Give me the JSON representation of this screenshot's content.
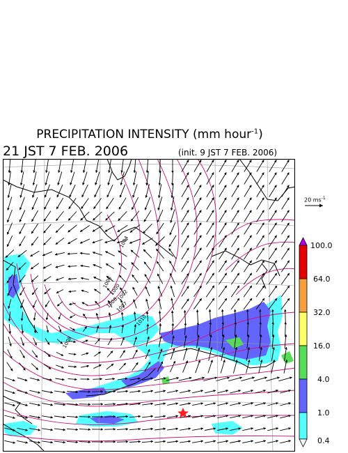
{
  "header": {
    "title_main": "PRECIPITATION INTENSITY (mm hour",
    "title_exp": "-1",
    "title_close": ")",
    "datetime": "21 JST 7 FEB. 2006",
    "init": "(init. 9 JST 7 FEB. 2006)"
  },
  "wind_scale": {
    "value": "20 ms",
    "exp": "-1"
  },
  "legend": {
    "levels": [
      "100.0",
      "64.0",
      "32.0",
      "16.0",
      "4.0",
      "1.0",
      "0.4"
    ],
    "colors": {
      "over": "#b400e6",
      "c64_100": "#e60000",
      "c32_64": "#f5a03c",
      "c16_32": "#ffff66",
      "c4_16": "#55dd55",
      "c1_4": "#6464ff",
      "c04_1": "#55ffff"
    }
  },
  "isobars": {
    "labels": [
      "1004",
      "1006",
      "1000",
      "1002",
      "1007",
      "1008",
      "1010",
      "1008"
    ]
  },
  "marker": {
    "color": "#ff2020"
  },
  "map": {
    "isobar_color": "#cc1177",
    "coast_color": "#000000"
  }
}
